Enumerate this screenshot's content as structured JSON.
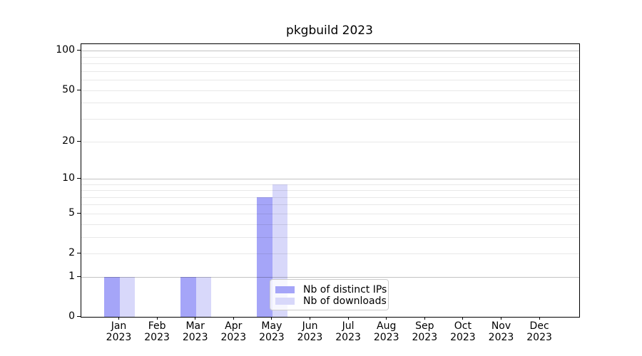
{
  "title": "pkgbuild 2023",
  "chart_data": {
    "type": "bar",
    "title": "pkgbuild 2023",
    "yscale": "log1p (position proportional to log10(1+value), 0 at baseline)",
    "ylim": [
      0,
      114
    ],
    "ytick_labels": [
      0,
      1,
      2,
      5,
      10,
      20,
      50,
      100
    ],
    "major_gridlines": [
      1,
      10,
      100
    ],
    "minor_gridlines": [
      2,
      3,
      4,
      5,
      6,
      7,
      8,
      9,
      20,
      30,
      40,
      50,
      60,
      70,
      80,
      90
    ],
    "grid": "horizontal only, drawn over bars",
    "x_year": "2023",
    "categories": [
      "Jan",
      "Feb",
      "Mar",
      "Apr",
      "May",
      "Jun",
      "Jul",
      "Aug",
      "Sep",
      "Oct",
      "Nov",
      "Dec"
    ],
    "series": [
      {
        "name": "Nb of distinct IPs",
        "color": "#a5a5f8",
        "values": [
          1,
          0,
          1,
          0,
          7,
          0,
          0,
          0,
          0,
          0,
          0,
          0
        ]
      },
      {
        "name": "Nb of downloads",
        "color": "#d8d8fa",
        "values": [
          1,
          0,
          1,
          0,
          9,
          0,
          0,
          0,
          0,
          0,
          0,
          0
        ]
      }
    ],
    "legend": {
      "entries": [
        "Nb of distinct IPs",
        "Nb of downloads"
      ],
      "position": "lower center, inside plot"
    },
    "colors": {
      "axis": "#000000",
      "major_grid": "rgba(0,0,0,0.24)",
      "minor_grid": "rgba(0,0,0,0.09)",
      "background": "#ffffff"
    }
  }
}
